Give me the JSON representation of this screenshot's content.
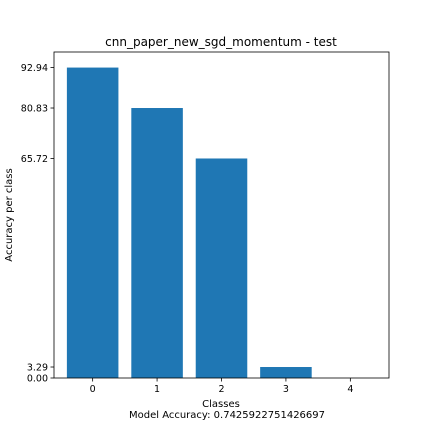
{
  "chart_data": {
    "type": "bar",
    "title": "cnn_paper_new_sgd_momentum - test",
    "xlabel": "Classes",
    "ylabel": "Accuracy per class",
    "footnote": "Model Accuracy: 0.7425922751426697",
    "categories": [
      "0",
      "1",
      "2",
      "3",
      "4"
    ],
    "values": [
      92.94,
      80.83,
      65.72,
      3.29,
      0.0
    ],
    "yticks": [
      "0.00",
      "3.29",
      "65.72",
      "80.83",
      "92.94"
    ],
    "ylim": [
      0,
      97.6
    ],
    "grid": false,
    "bar_color": "#1f77b4"
  }
}
